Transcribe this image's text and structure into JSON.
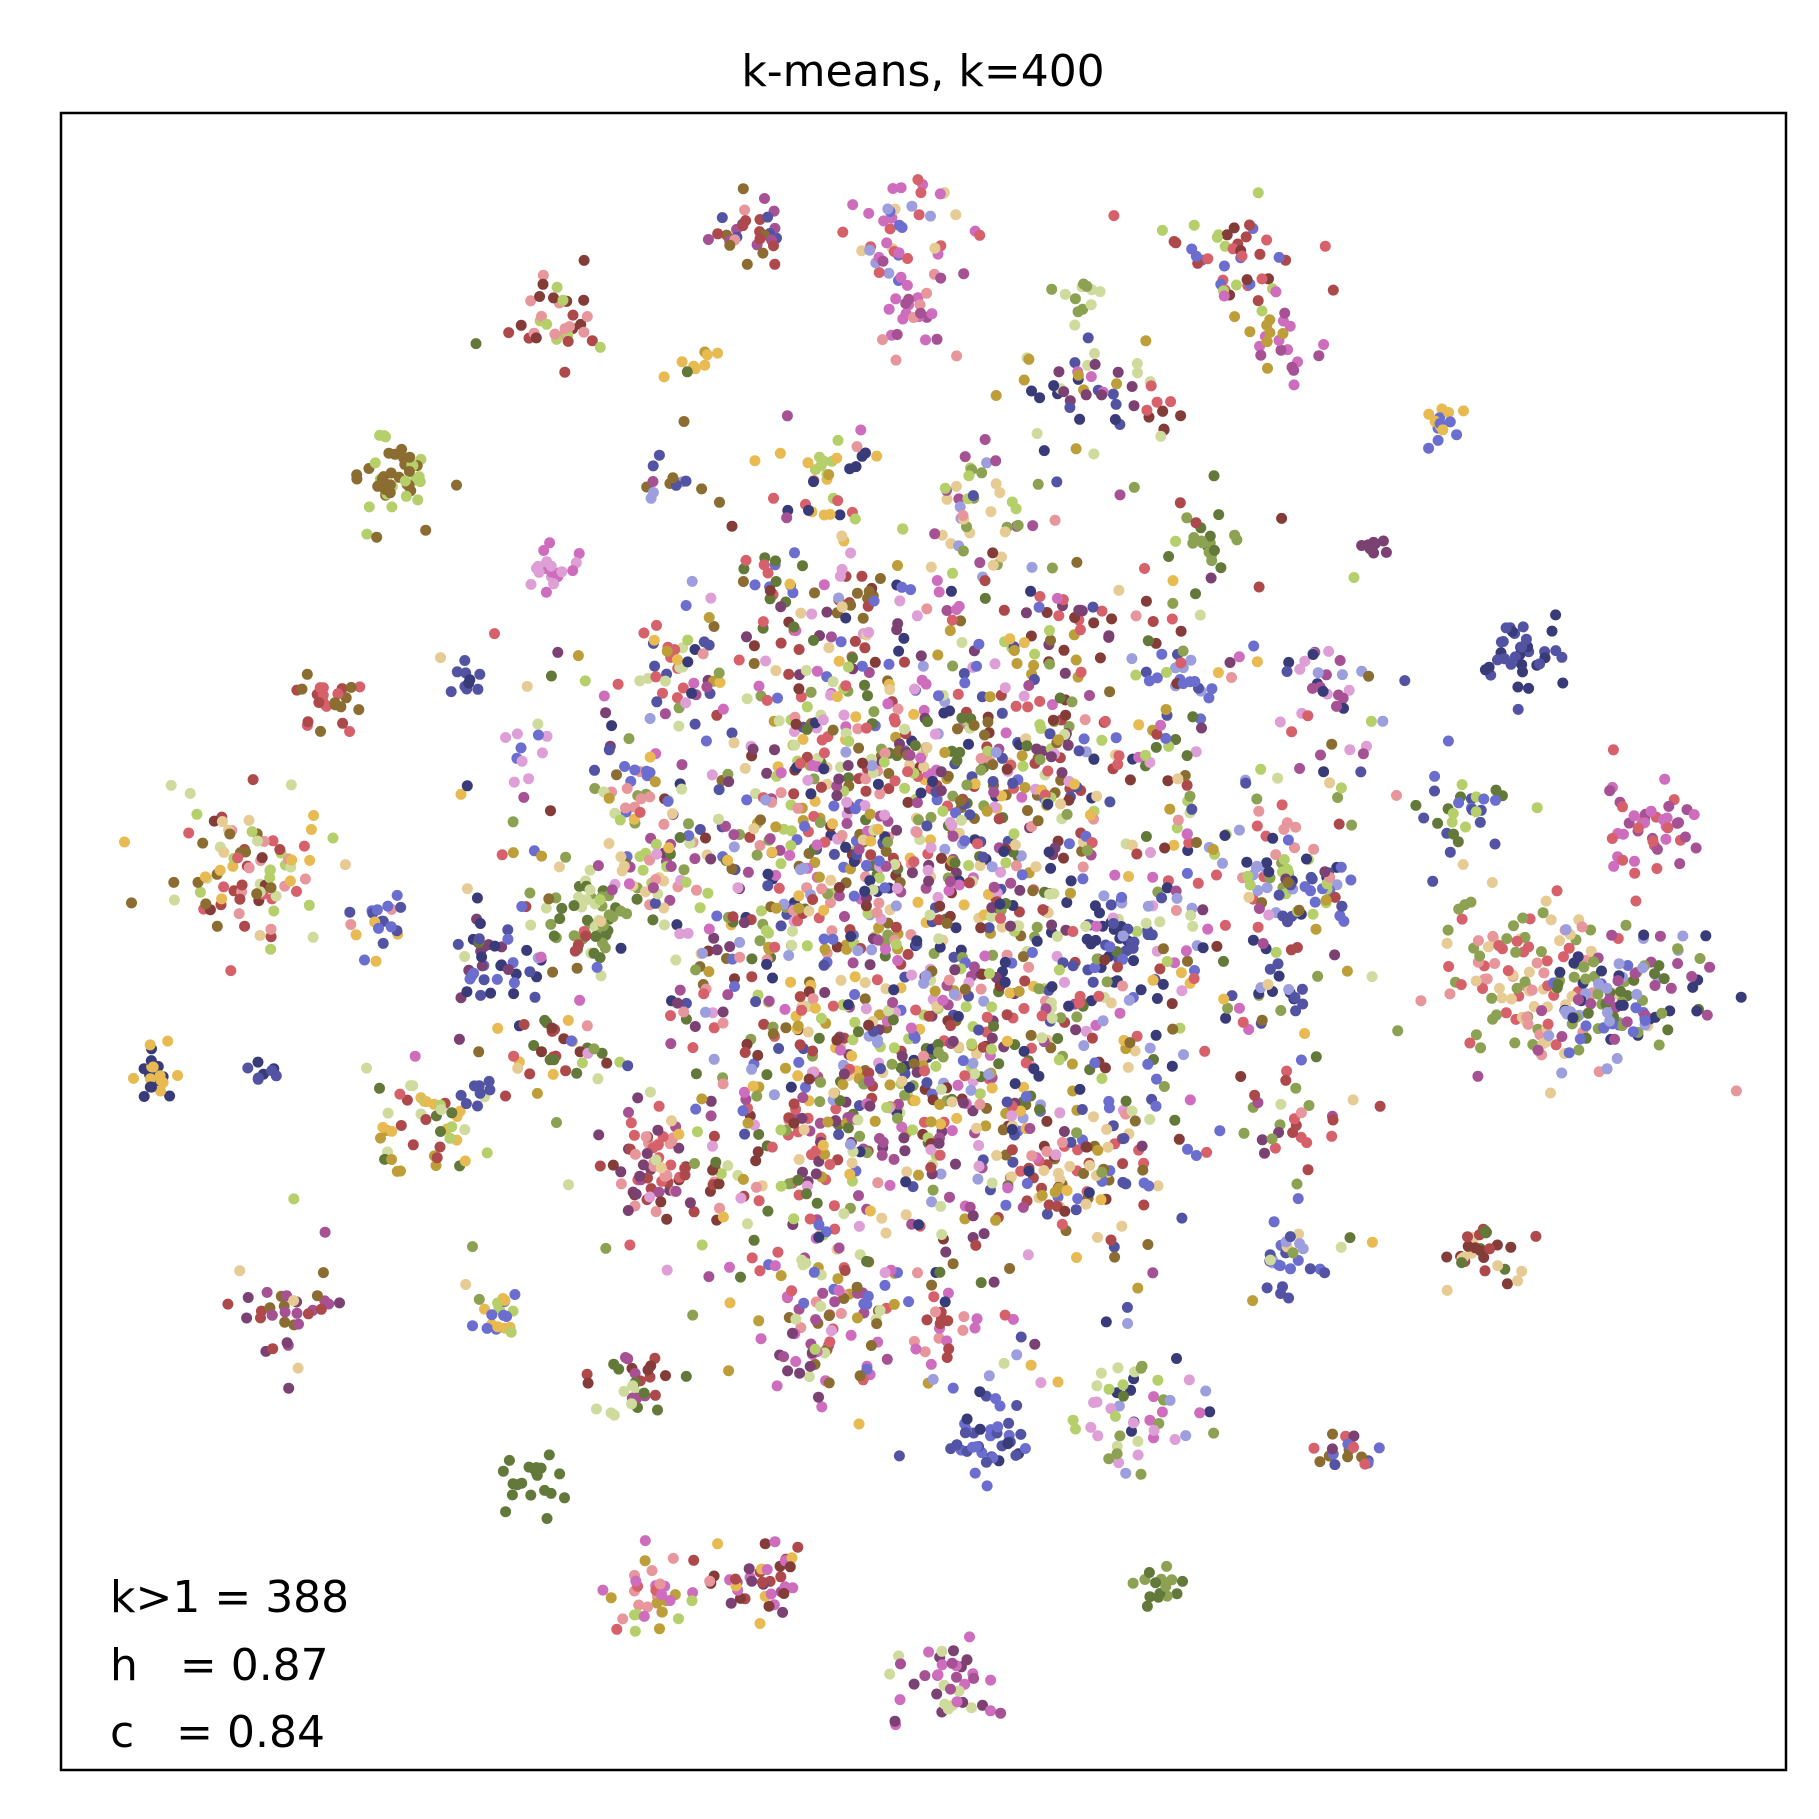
{
  "chart_data": {
    "type": "scatter",
    "title": "k-means, k=400",
    "xlabel": "",
    "ylabel": "",
    "ticks": "none",
    "grid": false,
    "xlim": [
      0,
      100
    ],
    "ylim": [
      0,
      100
    ],
    "palette": [
      "#393b79",
      "#5254a3",
      "#6b6ecf",
      "#9c9ede",
      "#637939",
      "#8ca252",
      "#b5cf6b",
      "#cedb9c",
      "#8c6d31",
      "#bd9e39",
      "#e7ba52",
      "#e7cb94",
      "#843c39",
      "#ad494a",
      "#d6616b",
      "#e7969c",
      "#7b4173",
      "#a55194",
      "#ce6dbd",
      "#de9ed6"
    ],
    "annotations": [
      {
        "label": "k>1",
        "sep": " = ",
        "value": "388"
      },
      {
        "label": "h",
        "sep": "   = ",
        "value": "0.87"
      },
      {
        "label": "c",
        "sep": "   = ",
        "value": "0.84"
      }
    ],
    "clusters": [
      {
        "x": 40.0,
        "y": 93.0,
        "spread": 1.2,
        "n": 30,
        "colors": [
          8,
          17,
          1,
          15,
          13
        ]
      },
      {
        "x": 48.5,
        "y": 92.5,
        "spread": 1.8,
        "n": 45,
        "colors": [
          3,
          18,
          14,
          11,
          2
        ]
      },
      {
        "x": 49.5,
        "y": 88.0,
        "spread": 1.2,
        "n": 25,
        "colors": [
          18,
          17,
          15
        ]
      },
      {
        "x": 68.0,
        "y": 91.5,
        "spread": 2.0,
        "n": 45,
        "colors": [
          12,
          6,
          14,
          13,
          2
        ]
      },
      {
        "x": 70.5,
        "y": 86.5,
        "spread": 1.2,
        "n": 25,
        "colors": [
          18,
          9,
          17
        ]
      },
      {
        "x": 29.0,
        "y": 87.5,
        "spread": 1.3,
        "n": 35,
        "colors": [
          15,
          13,
          6,
          12
        ]
      },
      {
        "x": 37.0,
        "y": 85.0,
        "spread": 0.6,
        "n": 8,
        "colors": [
          10,
          9
        ]
      },
      {
        "x": 59.0,
        "y": 89.0,
        "spread": 0.8,
        "n": 12,
        "colors": [
          7,
          5
        ]
      },
      {
        "x": 58.5,
        "y": 83.0,
        "spread": 2.0,
        "n": 45,
        "colors": [
          0,
          1,
          9,
          7,
          16,
          18
        ]
      },
      {
        "x": 63.5,
        "y": 82.0,
        "spread": 0.8,
        "n": 10,
        "colors": [
          16,
          12,
          14
        ]
      },
      {
        "x": 80.0,
        "y": 81.0,
        "spread": 0.8,
        "n": 14,
        "colors": [
          10,
          2
        ]
      },
      {
        "x": 19.0,
        "y": 78.0,
        "spread": 1.2,
        "n": 45,
        "colors": [
          8,
          6
        ]
      },
      {
        "x": 35.0,
        "y": 78.0,
        "spread": 0.9,
        "n": 12,
        "colors": [
          8,
          1,
          3
        ]
      },
      {
        "x": 44.5,
        "y": 77.5,
        "spread": 1.5,
        "n": 30,
        "colors": [
          10,
          14,
          0,
          6
        ]
      },
      {
        "x": 52.5,
        "y": 76.0,
        "spread": 1.8,
        "n": 40,
        "colors": [
          6,
          3,
          17,
          11,
          5
        ]
      },
      {
        "x": 66.5,
        "y": 74.0,
        "spread": 1.3,
        "n": 20,
        "colors": [
          5,
          4
        ]
      },
      {
        "x": 76.0,
        "y": 74.0,
        "spread": 0.5,
        "n": 8,
        "colors": [
          16
        ]
      },
      {
        "x": 28.0,
        "y": 72.5,
        "spread": 0.8,
        "n": 20,
        "colors": [
          19,
          18
        ]
      },
      {
        "x": 41.0,
        "y": 71.5,
        "spread": 1.3,
        "n": 20,
        "colors": [
          2,
          14,
          4
        ]
      },
      {
        "x": 46.0,
        "y": 70.5,
        "spread": 0.9,
        "n": 12,
        "colors": [
          8,
          13
        ]
      },
      {
        "x": 58.5,
        "y": 68.5,
        "spread": 1.8,
        "n": 30,
        "colors": [
          9,
          16,
          12,
          14
        ]
      },
      {
        "x": 84.5,
        "y": 67.5,
        "spread": 1.2,
        "n": 35,
        "colors": [
          0,
          1
        ]
      },
      {
        "x": 73.5,
        "y": 65.5,
        "spread": 1.5,
        "n": 30,
        "colors": [
          0,
          19,
          17,
          14,
          3
        ]
      },
      {
        "x": 35.0,
        "y": 66.0,
        "spread": 1.5,
        "n": 25,
        "colors": [
          1,
          7,
          2,
          14
        ]
      },
      {
        "x": 15.5,
        "y": 64.5,
        "spread": 1.0,
        "n": 25,
        "colors": [
          14,
          8,
          13
        ]
      },
      {
        "x": 23.5,
        "y": 66.0,
        "spread": 0.6,
        "n": 10,
        "colors": [
          0,
          1
        ]
      },
      {
        "x": 65.0,
        "y": 65.5,
        "spread": 1.3,
        "n": 20,
        "colors": [
          1,
          2,
          3,
          16
        ]
      },
      {
        "x": 33.0,
        "y": 59.0,
        "spread": 1.2,
        "n": 20,
        "colors": [
          2,
          7,
          5,
          15
        ]
      },
      {
        "x": 27.0,
        "y": 61.0,
        "spread": 0.8,
        "n": 10,
        "colors": [
          2,
          19
        ]
      },
      {
        "x": 81.5,
        "y": 58.0,
        "spread": 1.8,
        "n": 30,
        "colors": [
          2,
          1,
          6,
          4
        ]
      },
      {
        "x": 92.0,
        "y": 57.0,
        "spread": 1.3,
        "n": 45,
        "colors": [
          18,
          14,
          17
        ]
      },
      {
        "x": 11.0,
        "y": 54.0,
        "spread": 2.2,
        "n": 90,
        "colors": [
          6,
          7,
          8,
          13,
          11,
          12,
          14,
          15,
          10
        ]
      },
      {
        "x": 18.5,
        "y": 51.0,
        "spread": 1.0,
        "n": 20,
        "colors": [
          10,
          1,
          2,
          15
        ]
      },
      {
        "x": 25.0,
        "y": 48.5,
        "spread": 1.5,
        "n": 40,
        "colors": [
          1,
          2,
          16,
          0
        ]
      },
      {
        "x": 31.0,
        "y": 51.5,
        "spread": 1.6,
        "n": 55,
        "colors": [
          4,
          5,
          7
        ]
      },
      {
        "x": 35.0,
        "y": 54.5,
        "spread": 1.5,
        "n": 30,
        "colors": [
          11,
          6,
          17,
          15
        ]
      },
      {
        "x": 70.0,
        "y": 55.0,
        "spread": 2.2,
        "n": 60,
        "colors": [
          15,
          3,
          6,
          5,
          14,
          0
        ]
      },
      {
        "x": 72.5,
        "y": 53.0,
        "spread": 1.2,
        "n": 30,
        "colors": [
          2,
          1,
          13,
          6
        ]
      },
      {
        "x": 85.0,
        "y": 47.5,
        "spread": 2.5,
        "n": 120,
        "colors": [
          11,
          15,
          14,
          5
        ]
      },
      {
        "x": 90.5,
        "y": 46.5,
        "spread": 2.2,
        "n": 120,
        "colors": [
          3,
          4,
          5,
          2,
          17,
          0
        ]
      },
      {
        "x": 71.0,
        "y": 47.0,
        "spread": 0.9,
        "n": 15,
        "colors": [
          0,
          1,
          3,
          5
        ]
      },
      {
        "x": 5.5,
        "y": 42.0,
        "spread": 0.7,
        "n": 25,
        "colors": [
          0,
          10
        ]
      },
      {
        "x": 12.0,
        "y": 42.0,
        "spread": 0.5,
        "n": 8,
        "colors": [
          1,
          0
        ]
      },
      {
        "x": 28.5,
        "y": 43.5,
        "spread": 1.2,
        "n": 25,
        "colors": [
          12,
          13,
          10,
          4
        ]
      },
      {
        "x": 21.5,
        "y": 38.5,
        "spread": 1.8,
        "n": 45,
        "colors": [
          9,
          4,
          13,
          10,
          6,
          7
        ]
      },
      {
        "x": 35.0,
        "y": 36.0,
        "spread": 2.0,
        "n": 70,
        "colors": [
          12,
          13,
          14,
          15,
          16,
          17
        ]
      },
      {
        "x": 44.0,
        "y": 38.5,
        "spread": 2.0,
        "n": 50,
        "colors": [
          13,
          14,
          16,
          17,
          9,
          4
        ]
      },
      {
        "x": 59.0,
        "y": 36.0,
        "spread": 2.0,
        "n": 70,
        "colors": [
          12,
          13,
          2,
          1,
          14,
          8,
          11
        ]
      },
      {
        "x": 71.5,
        "y": 39.0,
        "spread": 1.3,
        "n": 25,
        "colors": [
          13,
          14,
          16,
          17,
          7,
          5
        ]
      },
      {
        "x": 70.5,
        "y": 31.0,
        "spread": 1.2,
        "n": 25,
        "colors": [
          1,
          2,
          3,
          11,
          7
        ]
      },
      {
        "x": 82.5,
        "y": 31.0,
        "spread": 1.2,
        "n": 30,
        "colors": [
          13,
          12,
          4,
          11
        ]
      },
      {
        "x": 13.5,
        "y": 27.5,
        "spread": 1.5,
        "n": 35,
        "colors": [
          16,
          11,
          17,
          13,
          8
        ]
      },
      {
        "x": 25.5,
        "y": 27.5,
        "spread": 0.9,
        "n": 20,
        "colors": [
          10,
          2,
          6
        ]
      },
      {
        "x": 33.5,
        "y": 23.5,
        "spread": 1.3,
        "n": 30,
        "colors": [
          17,
          4,
          12,
          13,
          7
        ]
      },
      {
        "x": 45.5,
        "y": 27.5,
        "spread": 2.0,
        "n": 70,
        "colors": [
          9,
          8,
          14,
          15,
          18,
          17,
          2,
          7
        ]
      },
      {
        "x": 53.5,
        "y": 20.0,
        "spread": 1.3,
        "n": 40,
        "colors": [
          1,
          2,
          0
        ]
      },
      {
        "x": 51.0,
        "y": 26.5,
        "spread": 1.3,
        "n": 20,
        "colors": [
          15,
          13,
          18
        ]
      },
      {
        "x": 62.5,
        "y": 21.5,
        "spread": 2.0,
        "n": 50,
        "colors": [
          3,
          6,
          7,
          19,
          0,
          5,
          18
        ]
      },
      {
        "x": 43.0,
        "y": 25.0,
        "spread": 1.0,
        "n": 15,
        "colors": [
          18,
          17,
          16
        ]
      },
      {
        "x": 74.5,
        "y": 19.5,
        "spread": 0.9,
        "n": 20,
        "colors": [
          1,
          8,
          16,
          2,
          14
        ]
      },
      {
        "x": 27.0,
        "y": 17.5,
        "spread": 0.9,
        "n": 20,
        "colors": [
          4
        ]
      },
      {
        "x": 40.5,
        "y": 11.5,
        "spread": 1.3,
        "n": 40,
        "colors": [
          16,
          17,
          10,
          18,
          13,
          12
        ]
      },
      {
        "x": 34.5,
        "y": 10.5,
        "spread": 1.3,
        "n": 35,
        "colors": [
          6,
          15,
          14,
          18,
          9
        ]
      },
      {
        "x": 64.0,
        "y": 11.0,
        "spread": 0.8,
        "n": 15,
        "colors": [
          5,
          4
        ]
      },
      {
        "x": 51.0,
        "y": 5.5,
        "spread": 1.5,
        "n": 40,
        "colors": [
          17,
          18,
          7,
          16
        ]
      },
      {
        "x": 24.0,
        "y": 41.0,
        "spread": 0.6,
        "n": 8,
        "colors": [
          1
        ]
      },
      {
        "x": 57.5,
        "y": 60.5,
        "spread": 1.5,
        "n": 20,
        "colors": [
          8,
          6,
          16,
          13,
          5
        ]
      },
      {
        "x": 61.5,
        "y": 49.5,
        "spread": 1.3,
        "n": 35,
        "colors": [
          0,
          1
        ]
      },
      {
        "x": 50.0,
        "y": 51.0,
        "spread": 11.0,
        "n": 1200,
        "colors": [
          0,
          1,
          2,
          3,
          4,
          5,
          6,
          7,
          8,
          9,
          10,
          11,
          12,
          13,
          14,
          15,
          16,
          17,
          18,
          19
        ]
      },
      {
        "x": 48.0,
        "y": 60.0,
        "spread": 6.0,
        "n": 400,
        "colors": [
          0,
          1,
          2,
          3,
          4,
          5,
          6,
          7,
          8,
          9,
          10,
          11,
          12,
          13,
          14,
          15,
          16,
          17,
          18,
          19
        ]
      },
      {
        "x": 50.0,
        "y": 42.0,
        "spread": 6.0,
        "n": 300,
        "colors": [
          0,
          1,
          2,
          3,
          4,
          5,
          6,
          7,
          8,
          9,
          10,
          11,
          12,
          13,
          14,
          15,
          16,
          17,
          18,
          19
        ]
      }
    ]
  }
}
